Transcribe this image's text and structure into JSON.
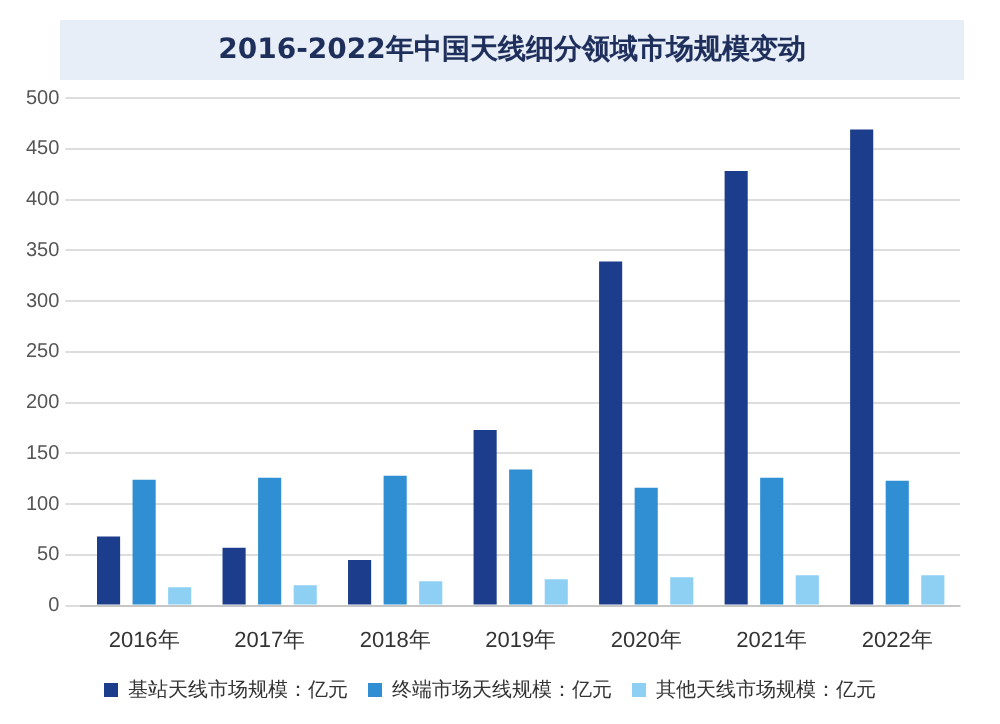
{
  "chart_data": {
    "type": "bar",
    "title": "2016-2022年中国天线细分领域市场规模变动",
    "categories": [
      "2016年",
      "2017年",
      "2018年",
      "2019年",
      "2020年",
      "2021年",
      "2022年"
    ],
    "series": [
      {
        "name": "基站天线市场规模：亿元",
        "color": "#1c3c8c",
        "values": [
          68,
          57,
          45,
          173,
          339,
          428,
          469
        ]
      },
      {
        "name": "终端市场天线规模：亿元",
        "color": "#2f8fd2",
        "values": [
          124,
          126,
          128,
          134,
          116,
          126,
          123
        ]
      },
      {
        "name": "其他天线市场规模：亿元",
        "color": "#8ecff4",
        "values": [
          18,
          20,
          24,
          26,
          28,
          30,
          30
        ]
      }
    ],
    "ylim": [
      0,
      500
    ],
    "yticks": [
      0,
      50,
      100,
      150,
      200,
      250,
      300,
      350,
      400,
      450,
      500
    ],
    "grid": "y",
    "legend": "bottom"
  }
}
